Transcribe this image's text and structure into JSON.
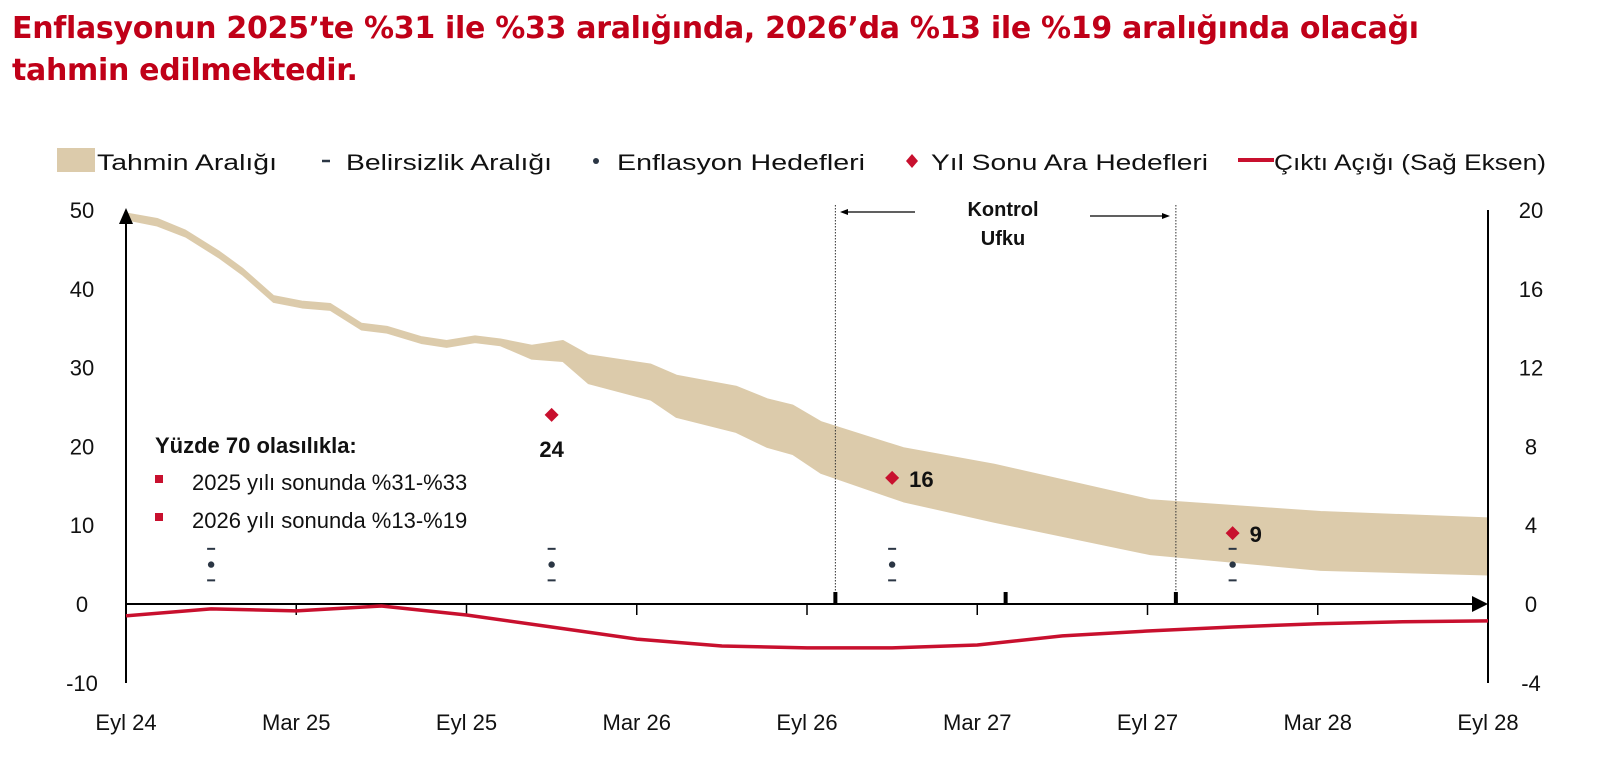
{
  "title": {
    "line1": "Enflasyonun 2025’te %31 ile %33 aralığında, 2026’da %13 ile %19 aralığında olacağı",
    "line2": "tahmin edilmektedir."
  },
  "colors": {
    "title": "#c00018",
    "band": "#dccbab",
    "output_gap": "#c8102e",
    "marker": "#c8102e",
    "target_dot": "#2b3644",
    "axis": "#000000"
  },
  "chart_data": {
    "type": "area",
    "title": "Enflasyonun 2025’te %31 ile %33 aralığında, 2026’da %13 ile %19 aralığında olacağı tahmin edilmektedir.",
    "x_unit": "months since Eyl 24",
    "x_ticks": [
      {
        "m": 0,
        "label": "Eyl 24"
      },
      {
        "m": 6,
        "label": "Mar 25"
      },
      {
        "m": 12,
        "label": "Eyl 25"
      },
      {
        "m": 18,
        "label": "Mar 26"
      },
      {
        "m": 24,
        "label": "Eyl 26"
      },
      {
        "m": 30,
        "label": "Mar 27"
      },
      {
        "m": 36,
        "label": "Eyl 27"
      },
      {
        "m": 42,
        "label": "Mar 28"
      },
      {
        "m": 48,
        "label": "Eyl 28"
      }
    ],
    "xlim": [
      0,
      48
    ],
    "left_axis": {
      "ylim": [
        -10,
        50
      ],
      "ticks": [
        "50",
        "40",
        "30",
        "20",
        "10",
        "0",
        "-10"
      ],
      "tick_values": [
        50,
        40,
        30,
        20,
        10,
        0,
        -10
      ]
    },
    "right_axis": {
      "ylim": [
        -4,
        20
      ],
      "ticks": [
        "20",
        "16",
        "12",
        "8",
        "4",
        "0",
        "-4"
      ],
      "tick_values": [
        20,
        16,
        12,
        8,
        4,
        0,
        -4
      ]
    },
    "legend": {
      "placement": "top",
      "items": [
        {
          "label": "Tahmin Aralığı",
          "kind": "band"
        },
        {
          "label": "Belirsizlik Aralığı",
          "kind": "dash"
        },
        {
          "label": "Enflasyon Hedefleri",
          "kind": "dot"
        },
        {
          "label": "Yıl Sonu Ara Hedefleri",
          "kind": "diamond"
        },
        {
          "label": "Çıktı Açığı (Sağ Eksen)",
          "kind": "line"
        }
      ]
    },
    "forecast_band": [
      {
        "m": 0,
        "low": 48.8,
        "high": 49.6
      },
      {
        "m": 1.1,
        "low": 48.0,
        "high": 48.9
      },
      {
        "m": 2.1,
        "low": 46.6,
        "high": 47.4
      },
      {
        "m": 3.3,
        "low": 43.9,
        "high": 44.7
      },
      {
        "m": 4.1,
        "low": 41.8,
        "high": 42.6
      },
      {
        "m": 5.2,
        "low": 38.3,
        "high": 39.1
      },
      {
        "m": 6.2,
        "low": 37.6,
        "high": 38.4
      },
      {
        "m": 7.2,
        "low": 37.3,
        "high": 38.1
      },
      {
        "m": 8.3,
        "low": 34.8,
        "high": 35.6
      },
      {
        "m": 9.2,
        "low": 34.4,
        "high": 35.2
      },
      {
        "m": 10.4,
        "low": 33.1,
        "high": 33.9
      },
      {
        "m": 11.3,
        "low": 32.6,
        "high": 33.4
      },
      {
        "m": 12.3,
        "low": 33.2,
        "high": 34.0
      },
      {
        "m": 13.2,
        "low": 32.8,
        "high": 33.6
      },
      {
        "m": 14.3,
        "low": 31.1,
        "high": 32.8
      },
      {
        "m": 15.4,
        "low": 30.8,
        "high": 33.4
      },
      {
        "m": 16.3,
        "low": 28.0,
        "high": 31.6
      },
      {
        "m": 18.5,
        "low": 25.9,
        "high": 30.4
      },
      {
        "m": 19.4,
        "low": 23.7,
        "high": 29.0
      },
      {
        "m": 21.5,
        "low": 21.8,
        "high": 27.6
      },
      {
        "m": 22.6,
        "low": 19.9,
        "high": 26.0
      },
      {
        "m": 23.5,
        "low": 19.0,
        "high": 25.2
      },
      {
        "m": 24.5,
        "low": 16.6,
        "high": 23.1
      },
      {
        "m": 27.4,
        "low": 13.0,
        "high": 19.8
      },
      {
        "m": 30.6,
        "low": 10.4,
        "high": 17.7
      },
      {
        "m": 36.1,
        "low": 6.3,
        "high": 13.2
      },
      {
        "m": 42.1,
        "low": 4.3,
        "high": 11.7
      },
      {
        "m": 48,
        "low": 3.7,
        "high": 10.9
      }
    ],
    "year_end_interim_targets": [
      {
        "m": 15,
        "value": 24,
        "label": "24"
      },
      {
        "m": 27,
        "value": 16,
        "label": "16"
      },
      {
        "m": 39,
        "value": 9,
        "label": "9"
      }
    ],
    "inflation_targets": [
      {
        "m": 3,
        "value": 5,
        "low": 3,
        "high": 7
      },
      {
        "m": 15,
        "value": 5,
        "low": 3,
        "high": 7
      },
      {
        "m": 27,
        "value": 5,
        "low": 3,
        "high": 7
      },
      {
        "m": 39,
        "value": 5,
        "low": 3,
        "high": 7
      }
    ],
    "output_gap_right_axis": [
      {
        "m": 0,
        "value": -0.6
      },
      {
        "m": 3,
        "value": -0.25
      },
      {
        "m": 6,
        "value": -0.35
      },
      {
        "m": 9,
        "value": -0.1
      },
      {
        "m": 12,
        "value": -0.56
      },
      {
        "m": 15,
        "value": -1.17
      },
      {
        "m": 18,
        "value": -1.78
      },
      {
        "m": 21,
        "value": -2.13
      },
      {
        "m": 24,
        "value": -2.23
      },
      {
        "m": 27,
        "value": -2.23
      },
      {
        "m": 30,
        "value": -2.08
      },
      {
        "m": 33,
        "value": -1.62
      },
      {
        "m": 36,
        "value": -1.37
      },
      {
        "m": 39,
        "value": -1.17
      },
      {
        "m": 42,
        "value": -1.0
      },
      {
        "m": 45,
        "value": -0.9
      },
      {
        "m": 48,
        "value": -0.86
      }
    ],
    "control_horizon": {
      "label_line1": "Kontrol",
      "label_line2": "Ufku",
      "start_m": 25,
      "end_m": 37,
      "mid_m": 31
    },
    "annotation": {
      "heading": "Yüzde 70 olasılıkla:",
      "items": [
        "2025 yılı sonunda %31-%33",
        "2026 yılı sonunda %13-%19"
      ]
    },
    "grid": false
  }
}
